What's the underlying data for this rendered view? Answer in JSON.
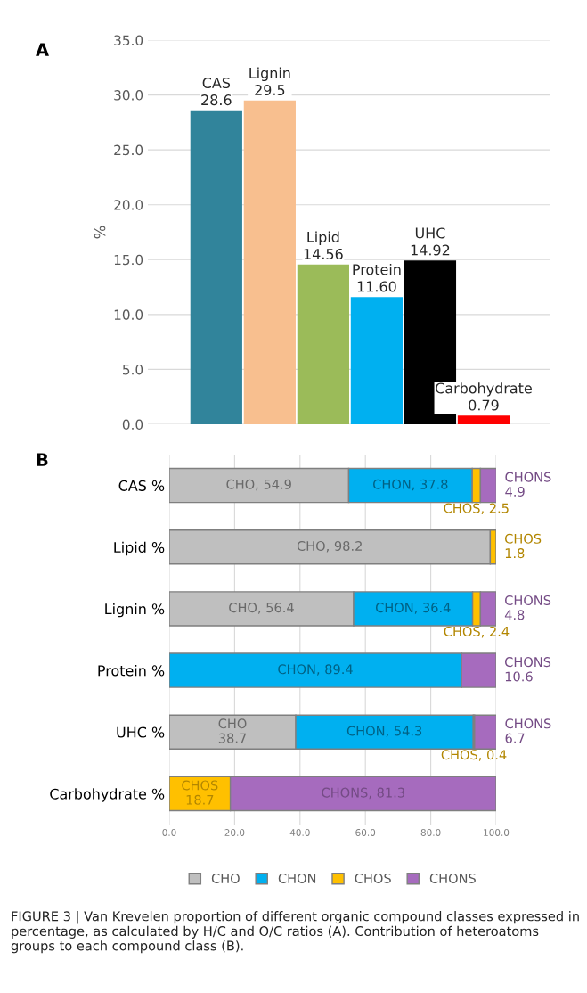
{
  "chart_data": [
    {
      "type": "bar",
      "ylabel": "%",
      "categories": [
        "CAS",
        "Lignin",
        "Lipid",
        "Protein",
        "UHC",
        "Carbohydrate"
      ],
      "values": [
        28.6,
        29.5,
        14.56,
        11.6,
        14.92,
        0.79
      ],
      "value_labels": [
        "28.6",
        "29.5",
        "14.56",
        "11.60",
        "14.92",
        "0.79"
      ],
      "colors": [
        "#31849b",
        "#f8bf8f",
        "#9bbb59",
        "#00b0f0",
        "#000000",
        "#ff0000"
      ],
      "ylim": [
        0,
        35
      ],
      "yticks": [
        {
          "value": 0,
          "label": "0.0"
        },
        {
          "value": 5,
          "label": "5.0"
        },
        {
          "value": 10,
          "label": "10.0"
        },
        {
          "value": 15,
          "label": "15.0"
        },
        {
          "value": 20,
          "label": "20.0"
        },
        {
          "value": 25,
          "label": "25.0"
        },
        {
          "value": 30,
          "label": "30.0"
        },
        {
          "value": 35,
          "label": "35.0"
        }
      ],
      "grid": "y",
      "annotations": [
        "A"
      ]
    },
    {
      "type": "bar",
      "orientation": "horizontal",
      "stacked": true,
      "categories": [
        "CAS %",
        "Lipid %",
        "Lignin %",
        "Protein %",
        "UHC %",
        "Carbohydrate %"
      ],
      "series": [
        {
          "name": "CHO",
          "color": "#bfbfbf",
          "values": [
            54.9,
            98.2,
            56.4,
            null,
            38.7,
            null
          ],
          "value_labels": [
            "CHO, 54.9",
            "CHO, 98.2",
            "CHO, 56.4",
            null,
            "CHO\n38.7",
            null
          ]
        },
        {
          "name": "CHON",
          "color": "#00b0f0",
          "values": [
            37.8,
            null,
            36.4,
            89.4,
            54.3,
            null
          ],
          "value_labels": [
            "CHON, 37.8",
            null,
            "CHON, 36.4",
            "CHON, 89.4",
            "CHON, 54.3",
            null
          ]
        },
        {
          "name": "CHOS",
          "color": "#ffc000",
          "values": [
            2.5,
            1.8,
            2.4,
            null,
            0.4,
            18.7
          ],
          "value_labels": [
            "CHOS, 2.5",
            "CHOS\n1.8",
            "CHOS, 2.4",
            null,
            "CHOS, 0.4",
            "CHOS\n18.7"
          ]
        },
        {
          "name": "CHONS",
          "color": "#a66bbe",
          "values": [
            4.9,
            null,
            4.8,
            10.6,
            6.7,
            81.3
          ],
          "value_labels": [
            "CHONS\n4.9",
            null,
            "CHONS\n4.8",
            "CHONS\n10.6",
            "CHONS\n6.7",
            "CHONS, 81.3"
          ]
        }
      ],
      "xlim": [
        0,
        100
      ],
      "xticks": [
        {
          "value": 0,
          "label": "0.0"
        },
        {
          "value": 20,
          "label": "20.0"
        },
        {
          "value": 40,
          "label": "40.0"
        },
        {
          "value": 60,
          "label": "60.0"
        },
        {
          "value": 80,
          "label": "80.0"
        },
        {
          "value": 100,
          "label": "100.0"
        }
      ],
      "grid": "x",
      "legend": "bottom",
      "annotations": [
        "B",
        "FIGURE 3 | Van Krevelen proportion of different organic compound classes expressed in percentage, as calculated by H/C and O/C ratios (A). Contribution of heteroatoms groups to each compound class (B)."
      ]
    }
  ]
}
